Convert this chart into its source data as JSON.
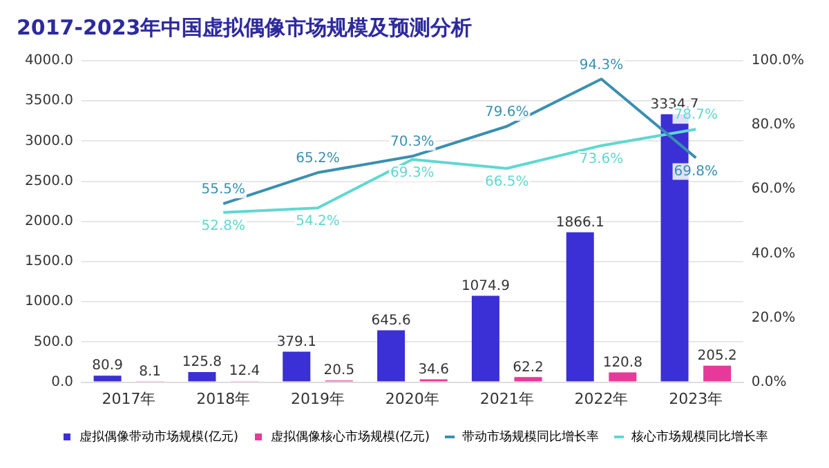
{
  "chart_data": {
    "type": "bar",
    "title": "2017-2023年中国虚拟偶像市场规模及预测分析",
    "categories": [
      "2017年",
      "2018年",
      "2019年",
      "2020年",
      "2021年",
      "2022年",
      "2023年"
    ],
    "series": [
      {
        "name": "虚拟偶像带动市场规模(亿元)",
        "color": "#3b2fd6",
        "values": [
          80.9,
          125.8,
          379.1,
          645.6,
          1074.9,
          1866.1,
          3334.7
        ],
        "value_labels": [
          "80.9",
          "125.8",
          "379.1",
          "645.6",
          "1074.9",
          "1866.1",
          "3334.7"
        ]
      },
      {
        "name": "虚拟偶像核心市场规模(亿元)",
        "color": "#e8399a",
        "values": [
          8.1,
          12.4,
          20.5,
          34.6,
          62.2,
          120.8,
          205.2
        ],
        "value_labels": [
          "8.1",
          "12.4",
          "20.5",
          "34.6",
          "62.2",
          "120.8",
          "205.2"
        ]
      },
      {
        "name": "带动市场规模同比增长率",
        "type": "line",
        "axis": "y2",
        "color": "#3a8fb0",
        "values": [
          null,
          55.5,
          65.2,
          70.3,
          79.6,
          94.3,
          69.8
        ],
        "value_labels": [
          null,
          "55.5%",
          "65.2%",
          "70.3%",
          "79.6%",
          "94.3%",
          "69.8%"
        ]
      },
      {
        "name": "核心市场规模同比增长率",
        "type": "line",
        "axis": "y2",
        "color": "#5fd8d0",
        "values": [
          null,
          52.8,
          54.2,
          69.3,
          66.5,
          73.6,
          78.7
        ],
        "value_labels": [
          null,
          "52.8%",
          "54.2%",
          "69.3%",
          "66.5%",
          "73.6%",
          "78.7%"
        ]
      }
    ],
    "ylim": [
      0,
      4000
    ],
    "yticks": [
      {
        "value": 0,
        "label": "0.0"
      },
      {
        "value": 500,
        "label": "500.0"
      },
      {
        "value": 1000,
        "label": "1000.0"
      },
      {
        "value": 1500,
        "label": "1500.0"
      },
      {
        "value": 2000,
        "label": "2000.0"
      },
      {
        "value": 2500,
        "label": "2500.0"
      },
      {
        "value": 3000,
        "label": "3000.0"
      },
      {
        "value": 3500,
        "label": "3500.0"
      },
      {
        "value": 4000,
        "label": "4000.0"
      }
    ],
    "y2lim": [
      0,
      100
    ],
    "y2ticks": [
      {
        "value": 0,
        "label": "0.0%"
      },
      {
        "value": 20,
        "label": "20.0%"
      },
      {
        "value": 40,
        "label": "40.0%"
      },
      {
        "value": 60,
        "label": "60.0%"
      },
      {
        "value": 80,
        "label": "80.0%"
      },
      {
        "value": 100,
        "label": "100.0%"
      }
    ],
    "grid": "y",
    "legend": "bottom",
    "marker": "none",
    "line_style": "solid"
  }
}
